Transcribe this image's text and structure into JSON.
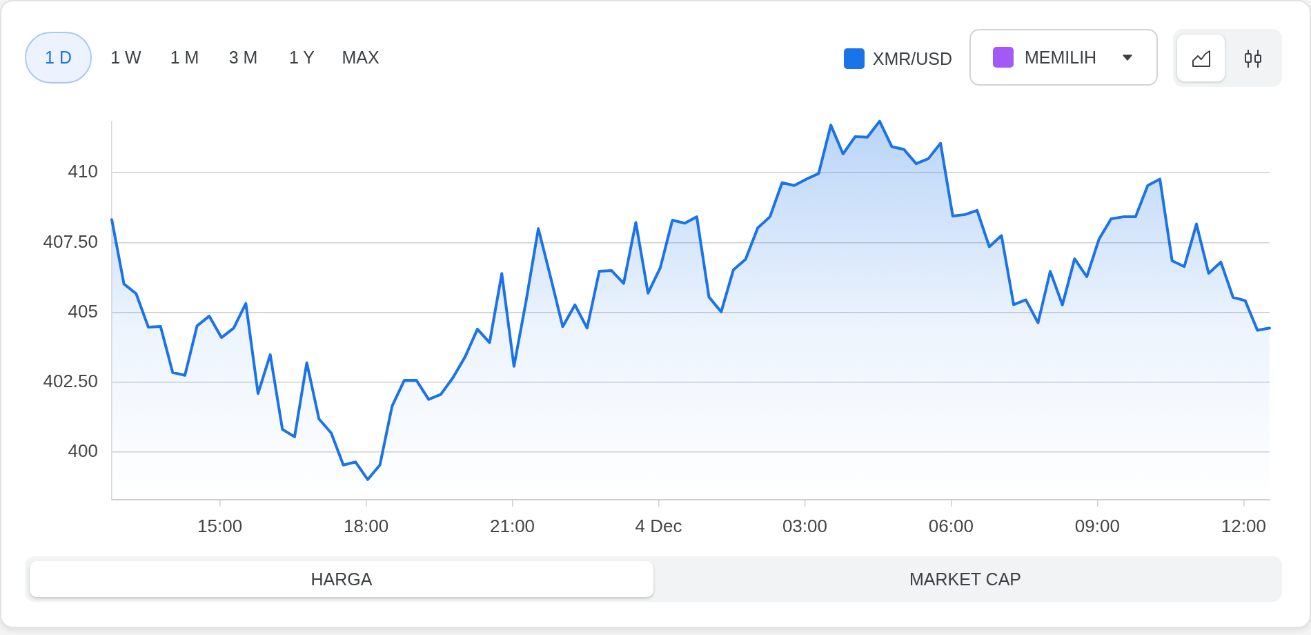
{
  "chart_data": {
    "type": "area",
    "x": [
      "--12-03T12:47",
      "--12-03T13:02",
      "--12-03T13:17",
      "--12-03T13:32",
      "--12-03T13:47",
      "--12-03T14:02",
      "--12-03T14:17",
      "--12-03T14:32",
      "--12-03T14:47",
      "--12-03T15:02",
      "--12-03T15:17",
      "--12-03T15:32",
      "--12-03T15:47",
      "--12-03T16:02",
      "--12-03T16:17",
      "--12-03T16:32",
      "--12-03T16:47",
      "--12-03T17:02",
      "--12-03T17:17",
      "--12-03T17:32",
      "--12-03T17:47",
      "--12-03T18:02",
      "--12-03T18:17",
      "--12-03T18:32",
      "--12-03T18:47",
      "--12-03T19:02",
      "--12-03T19:17",
      "--12-03T19:32",
      "--12-03T19:47",
      "--12-03T20:02",
      "--12-03T20:17",
      "--12-03T20:32",
      "--12-03T20:47",
      "--12-03T21:02",
      "--12-03T21:17",
      "--12-03T21:32",
      "--12-03T21:47",
      "--12-03T22:02",
      "--12-03T22:17",
      "--12-03T22:32",
      "--12-03T22:47",
      "--12-03T23:02",
      "--12-03T23:17",
      "--12-03T23:32",
      "--12-03T23:47",
      "--12-04T00:02",
      "--12-04T00:17",
      "--12-04T00:32",
      "--12-04T00:47",
      "--12-04T01:02",
      "--12-04T01:17",
      "--12-04T01:32",
      "--12-04T01:47",
      "--12-04T02:02",
      "--12-04T02:17",
      "--12-04T02:32",
      "--12-04T02:47",
      "--12-04T03:02",
      "--12-04T03:17",
      "--12-04T03:32",
      "--12-04T03:47",
      "--12-04T04:02",
      "--12-04T04:17",
      "--12-04T04:32",
      "--12-04T04:47",
      "--12-04T05:02",
      "--12-04T05:17",
      "--12-04T05:32",
      "--12-04T05:47",
      "--12-04T06:02",
      "--12-04T06:17",
      "--12-04T06:32",
      "--12-04T06:47",
      "--12-04T07:02",
      "--12-04T07:17",
      "--12-04T07:32",
      "--12-04T07:47",
      "--12-04T08:02",
      "--12-04T08:17",
      "--12-04T08:32",
      "--12-04T08:47",
      "--12-04T09:02",
      "--12-04T09:17",
      "--12-04T09:32",
      "--12-04T09:47",
      "--12-04T10:02",
      "--12-04T10:17",
      "--12-04T10:32",
      "--12-04T10:47",
      "--12-04T11:02",
      "--12-04T11:17",
      "--12-04T11:32",
      "--12-04T11:47",
      "--12-04T12:02",
      "--12-04T12:17",
      "--12-04T12:32"
    ],
    "series": [
      {
        "name": "XMR/USD",
        "color": "#1a73e8",
        "values": [
          408.32,
          406.02,
          405.67,
          404.47,
          404.5,
          402.85,
          402.75,
          404.52,
          404.87,
          404.1,
          404.44,
          405.32,
          402.1,
          403.49,
          400.82,
          400.55,
          403.2,
          401.19,
          400.69,
          399.54,
          399.65,
          399.02,
          399.54,
          401.65,
          402.57,
          402.57,
          401.89,
          402.07,
          402.67,
          403.42,
          404.4,
          403.92,
          406.39,
          403.07,
          405.42,
          408.0,
          406.27,
          404.49,
          405.27,
          404.44,
          406.47,
          406.5,
          406.04,
          408.22,
          405.69,
          406.59,
          408.3,
          408.19,
          408.42,
          405.55,
          405.02,
          406.52,
          406.9,
          408.02,
          408.42,
          409.64,
          409.54,
          409.77,
          409.97,
          411.7,
          410.67,
          411.29,
          411.27,
          411.84,
          410.93,
          410.83,
          410.32,
          410.5,
          411.05,
          408.45,
          408.5,
          408.65,
          407.35,
          407.75,
          405.28,
          405.45,
          404.63,
          406.47,
          405.27,
          406.92,
          406.28,
          407.62,
          408.35,
          408.42,
          408.42,
          409.54,
          409.77,
          406.85,
          406.64,
          408.16,
          406.4,
          406.8,
          405.54,
          405.42,
          404.36,
          404.44
        ]
      }
    ],
    "xlim": [
      "--12-03T12:47",
      "--12-04T12:32"
    ],
    "xticks": [
      {
        "value": "--12-03T15:00",
        "label": "15:00"
      },
      {
        "value": "--12-03T18:00",
        "label": "18:00"
      },
      {
        "value": "--12-03T21:00",
        "label": "21:00"
      },
      {
        "value": "--12-04T00:00",
        "label": "4 Dec"
      },
      {
        "value": "--12-04T03:00",
        "label": "03:00"
      },
      {
        "value": "--12-04T06:00",
        "label": "06:00"
      },
      {
        "value": "--12-04T09:00",
        "label": "09:00"
      },
      {
        "value": "--12-04T12:00",
        "label": "12:00"
      }
    ],
    "ylim": [
      398.3,
      411.84
    ],
    "yticks": [
      400,
      {
        "value": 402.5,
        "label": "402.50"
      },
      405,
      {
        "value": 407.5,
        "label": "407.50"
      },
      410
    ],
    "grid": "y",
    "legend": "top right",
    "marker": "none",
    "annotations": [
      "1 D",
      "1 W",
      "1 M",
      "3 M",
      "1 Y",
      "MAX",
      "MEMILIH",
      "HARGA",
      "MARKET CAP"
    ]
  }
}
